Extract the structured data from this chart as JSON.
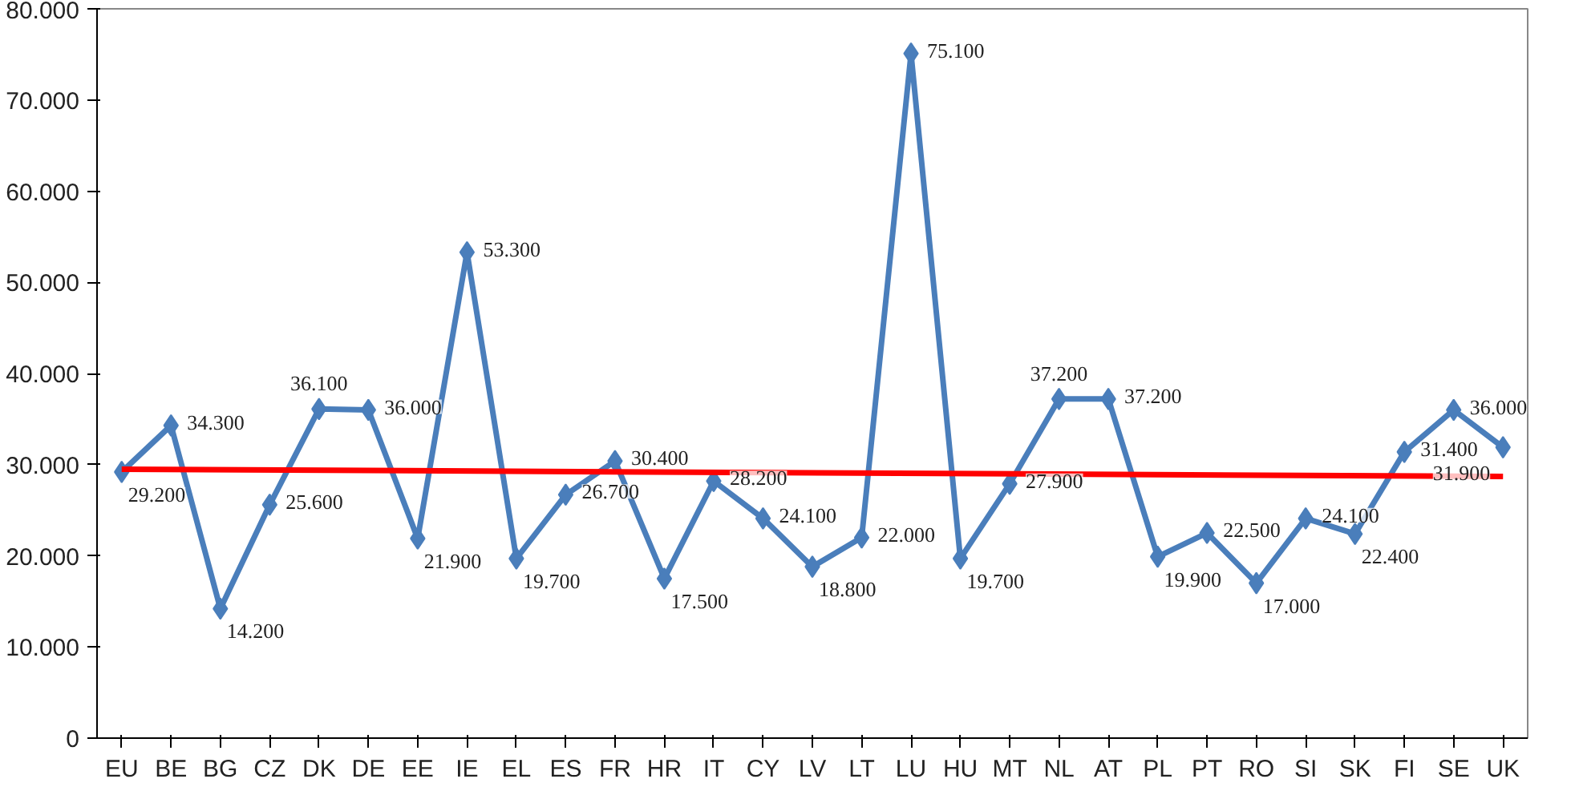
{
  "chart_data": {
    "type": "line",
    "categories": [
      "EU",
      "BE",
      "BG",
      "CZ",
      "DK",
      "DE",
      "EE",
      "IE",
      "EL",
      "ES",
      "FR",
      "HR",
      "IT",
      "CY",
      "LV",
      "LT",
      "LU",
      "HU",
      "MT",
      "NL",
      "AT",
      "PL",
      "PT",
      "RO",
      "SI",
      "SK",
      "FI",
      "SE",
      "UK"
    ],
    "ylim": [
      0,
      80000
    ],
    "yticks": [
      {
        "value": 0,
        "label": "0"
      },
      {
        "value": 10000,
        "label": "10.000"
      },
      {
        "value": 20000,
        "label": "20.000"
      },
      {
        "value": 30000,
        "label": "30.000"
      },
      {
        "value": 40000,
        "label": "40.000"
      },
      {
        "value": 50000,
        "label": "50.000"
      },
      {
        "value": 60000,
        "label": "60.000"
      },
      {
        "value": 70000,
        "label": "70.000"
      },
      {
        "value": 80000,
        "label": "80.000"
      }
    ],
    "grid": false,
    "marker": "diamond",
    "line_style": "solid",
    "series": [
      {
        "color": "#4a7ebb",
        "values": [
          29200,
          34300,
          14200,
          25600,
          36100,
          36000,
          21900,
          53300,
          19700,
          26700,
          30400,
          17500,
          28200,
          24100,
          18800,
          22000,
          75100,
          19700,
          27900,
          37200,
          37200,
          19900,
          22500,
          17000,
          24100,
          22400,
          31400,
          36000,
          31900
        ],
        "value_labels": [
          "29.200",
          "34.300",
          "14.200",
          "25.600",
          "36.100",
          "36.000",
          "21.900",
          "53.300",
          "19.700",
          "26.700",
          "30.400",
          "17.500",
          "28.200",
          "24.100",
          "18.800",
          "22.000",
          "75.100",
          "19.700",
          "27.900",
          "37.200",
          "37.200",
          "19.900",
          "22.500",
          "17.000",
          "24.100",
          "22.400",
          "31.400",
          "36.000",
          "31.900"
        ]
      },
      {
        "type": "line",
        "color": "#ff0000",
        "x": [
          "EU",
          "UK"
        ],
        "values": [
          29500,
          28700
        ],
        "marker": "none"
      }
    ]
  }
}
